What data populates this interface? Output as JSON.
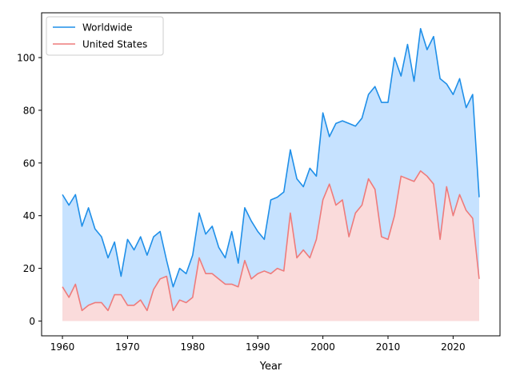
{
  "chart_data": {
    "type": "area",
    "title": "",
    "xlabel": "Year",
    "ylabel": "",
    "xlim": [
      1956.8,
      2027.2
    ],
    "ylim": [
      -5.6,
      117
    ],
    "x_ticks": [
      1960,
      1970,
      1980,
      1990,
      2000,
      2010,
      2020
    ],
    "y_ticks": [
      0,
      20,
      40,
      60,
      80,
      100
    ],
    "grid": false,
    "legend_position": "top-left",
    "x": [
      1960,
      1961,
      1962,
      1963,
      1964,
      1965,
      1966,
      1967,
      1968,
      1969,
      1970,
      1971,
      1972,
      1973,
      1974,
      1975,
      1976,
      1977,
      1978,
      1979,
      1980,
      1981,
      1982,
      1983,
      1984,
      1985,
      1986,
      1987,
      1988,
      1989,
      1990,
      1991,
      1992,
      1993,
      1994,
      1995,
      1996,
      1997,
      1998,
      1999,
      2000,
      2001,
      2002,
      2003,
      2004,
      2005,
      2006,
      2007,
      2008,
      2009,
      2010,
      2011,
      2012,
      2013,
      2014,
      2015,
      2016,
      2017,
      2018,
      2019,
      2020,
      2021,
      2022,
      2023,
      2024
    ],
    "series": [
      {
        "name": "Worldwide",
        "color": "#1f8fe8",
        "fill": "#c6e2ff",
        "values": [
          48,
          44,
          48,
          36,
          43,
          35,
          32,
          24,
          30,
          17,
          31,
          27,
          32,
          25,
          32,
          34,
          23,
          13,
          20,
          18,
          25,
          41,
          33,
          36,
          28,
          24,
          34,
          22,
          43,
          38,
          34,
          31,
          46,
          47,
          49,
          65,
          54,
          51,
          58,
          55,
          79,
          70,
          75,
          76,
          75,
          74,
          77,
          86,
          89,
          83,
          83,
          100,
          93,
          105,
          91,
          111,
          103,
          108,
          92,
          90,
          86,
          92,
          81,
          86,
          47
        ]
      },
      {
        "name": "United States",
        "color": "#ee7b7b",
        "fill": "#fadbdb",
        "values": [
          13,
          9,
          14,
          4,
          6,
          7,
          7,
          4,
          10,
          10,
          6,
          6,
          8,
          4,
          12,
          16,
          17,
          4,
          8,
          7,
          9,
          24,
          18,
          18,
          16,
          14,
          14,
          13,
          23,
          16,
          18,
          19,
          18,
          20,
          19,
          41,
          24,
          27,
          24,
          31,
          46,
          52,
          44,
          46,
          32,
          41,
          44,
          54,
          50,
          32,
          31,
          40,
          55,
          54,
          53,
          57,
          55,
          52,
          31,
          51,
          40,
          48,
          42,
          39,
          16
        ]
      }
    ]
  }
}
